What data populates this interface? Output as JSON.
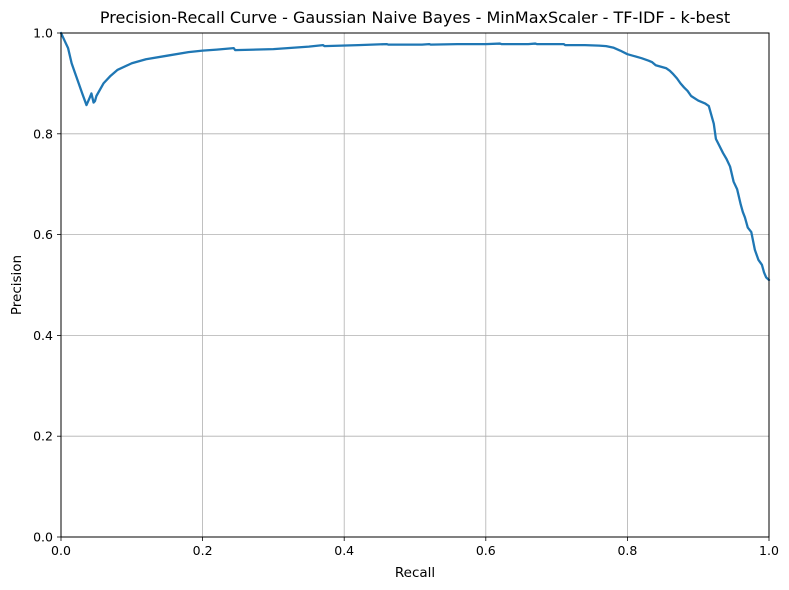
{
  "chart_data": {
    "type": "line",
    "title": "Precision-Recall Curve - Gaussian Naive Bayes - MinMaxScaler - TF-IDF - k-best",
    "xlabel": "Recall",
    "ylabel": "Precision",
    "xlim": [
      0,
      1
    ],
    "ylim": [
      0,
      1
    ],
    "xticks": [
      "0.0",
      "0.2",
      "0.4",
      "0.6",
      "0.8",
      "1.0"
    ],
    "yticks": [
      "0.0",
      "0.2",
      "0.4",
      "0.6",
      "0.8",
      "1.0"
    ],
    "grid": true,
    "line_color": "#1f77b4",
    "series": [
      {
        "x": [
          0.0,
          0.005,
          0.01,
          0.015,
          0.02,
          0.025,
          0.03,
          0.036,
          0.04,
          0.043,
          0.046,
          0.048,
          0.05,
          0.06,
          0.07,
          0.08,
          0.1,
          0.12,
          0.15,
          0.18,
          0.2,
          0.22,
          0.244,
          0.246,
          0.3,
          0.35,
          0.37,
          0.372,
          0.42,
          0.46,
          0.462,
          0.51,
          0.52,
          0.522,
          0.56,
          0.6,
          0.62,
          0.622,
          0.66,
          0.67,
          0.672,
          0.7,
          0.71,
          0.712,
          0.74,
          0.76,
          0.77,
          0.78,
          0.79,
          0.8,
          0.81,
          0.82,
          0.83,
          0.835,
          0.84,
          0.85,
          0.855,
          0.86,
          0.865,
          0.87,
          0.875,
          0.88,
          0.885,
          0.89,
          0.9,
          0.91,
          0.915,
          0.92,
          0.922,
          0.925,
          0.93,
          0.935,
          0.94,
          0.945,
          0.95,
          0.955,
          0.96,
          0.963,
          0.966,
          0.97,
          0.975,
          0.98,
          0.985,
          0.99,
          0.993,
          0.996,
          1.0
        ],
        "y": [
          1.0,
          0.985,
          0.97,
          0.94,
          0.92,
          0.9,
          0.88,
          0.857,
          0.87,
          0.88,
          0.862,
          0.865,
          0.875,
          0.9,
          0.915,
          0.927,
          0.94,
          0.948,
          0.955,
          0.962,
          0.965,
          0.967,
          0.97,
          0.966,
          0.968,
          0.973,
          0.976,
          0.974,
          0.976,
          0.978,
          0.977,
          0.977,
          0.978,
          0.977,
          0.978,
          0.978,
          0.979,
          0.978,
          0.978,
          0.979,
          0.978,
          0.978,
          0.978,
          0.976,
          0.976,
          0.975,
          0.974,
          0.971,
          0.965,
          0.958,
          0.954,
          0.95,
          0.945,
          0.942,
          0.936,
          0.932,
          0.93,
          0.925,
          0.918,
          0.91,
          0.9,
          0.892,
          0.885,
          0.875,
          0.866,
          0.86,
          0.855,
          0.83,
          0.82,
          0.79,
          0.776,
          0.762,
          0.75,
          0.735,
          0.705,
          0.69,
          0.66,
          0.645,
          0.634,
          0.614,
          0.605,
          0.57,
          0.55,
          0.54,
          0.525,
          0.515,
          0.51
        ]
      }
    ]
  }
}
